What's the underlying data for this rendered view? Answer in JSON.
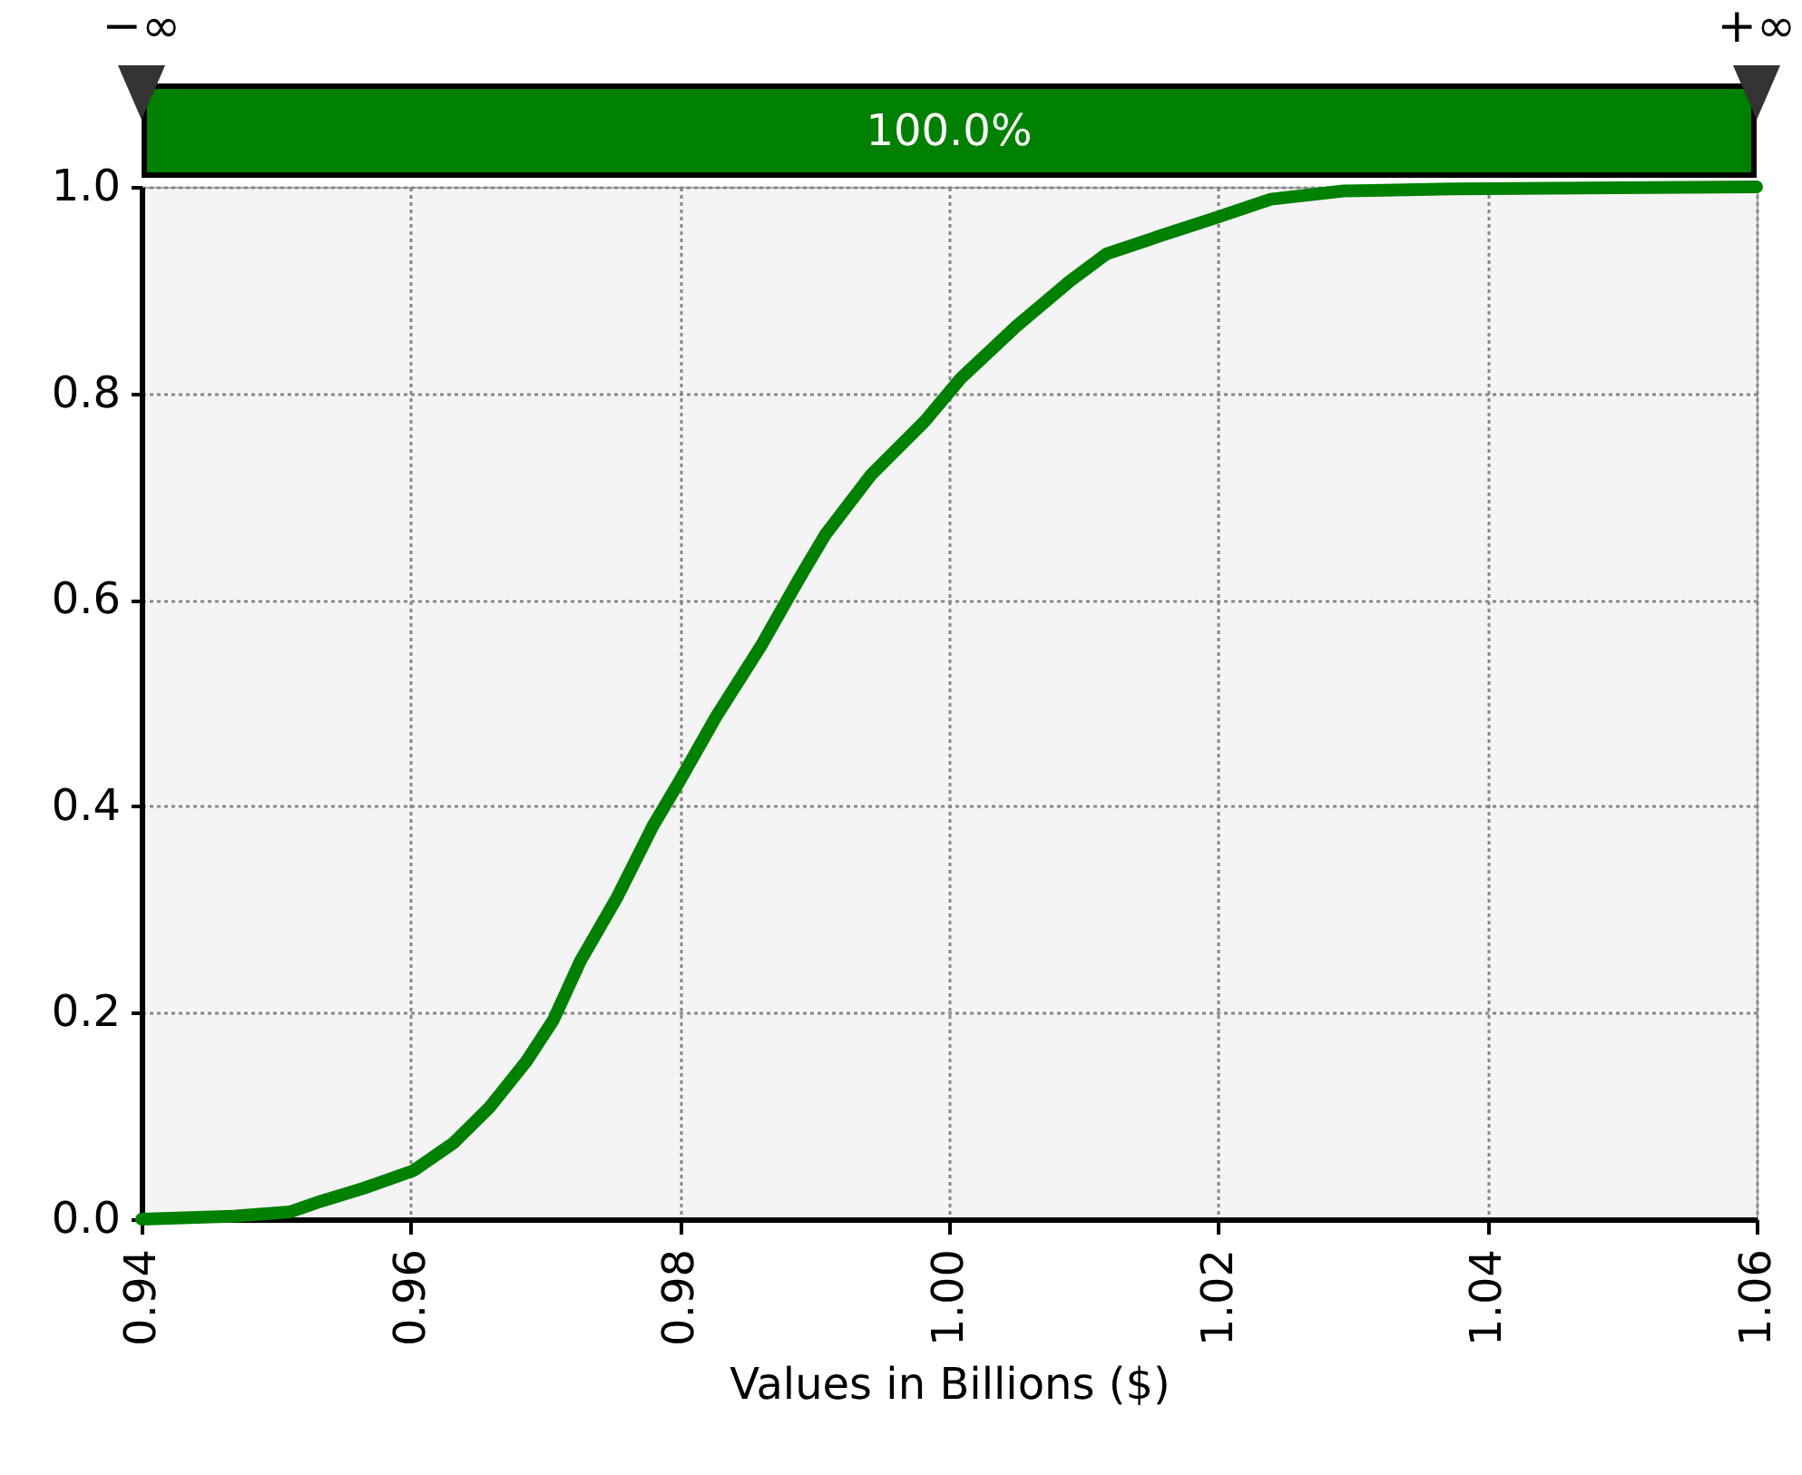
{
  "chart_data": {
    "type": "line",
    "xlabel": "Values in Billions ($)",
    "annotations": [
      "−∞",
      "100.0%",
      "+∞"
    ],
    "x": [
      0.94,
      0.947,
      0.951,
      0.953,
      0.9565,
      0.9602,
      0.9632,
      0.9659,
      0.9686,
      0.9706,
      0.9726,
      0.9753,
      0.978,
      0.98,
      0.9827,
      0.9861,
      0.9888,
      0.9908,
      0.9942,
      0.9982,
      1.0009,
      1.005,
      1.009,
      1.0117,
      1.0158,
      1.0198,
      1.0239,
      1.0293,
      1.0373,
      1.06
    ],
    "series": [
      {
        "color": "#008000",
        "values": [
          0,
          0.003,
          0.007,
          0.016,
          0.03,
          0.047,
          0.074,
          0.109,
          0.153,
          0.193,
          0.25,
          0.311,
          0.381,
          0.425,
          0.487,
          0.557,
          0.619,
          0.663,
          0.721,
          0.773,
          0.815,
          0.865,
          0.909,
          0.935,
          0.953,
          0.97,
          0.988,
          0.996,
          0.998,
          1
        ]
      }
    ],
    "xlim": [
      0.94,
      1.06
    ],
    "xticks": [
      0.94,
      0.96,
      0.98,
      {
        "value": 1,
        "label": "1.00"
      },
      1.02,
      1.04,
      1.06
    ],
    "ylim": [
      0,
      1
    ],
    "yticks": [
      {
        "value": 0,
        "label": "0.0"
      },
      0.2,
      0.4,
      0.6,
      0.8,
      {
        "value": 1,
        "label": "1.0"
      }
    ],
    "grid": true,
    "marker": "none",
    "line_style": "solid"
  }
}
